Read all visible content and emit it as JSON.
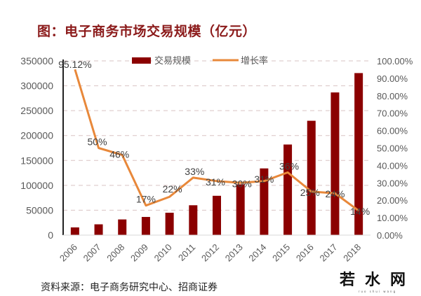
{
  "title": "图：电子商务市场交易规模（亿元）",
  "source": "资料来源：电子商务研究中心、招商证券",
  "watermark": {
    "text": "若水网",
    "subtext": "ruo shui wang"
  },
  "colors": {
    "bar": "#8b0000",
    "line": "#e8883a",
    "title": "#8b1a1a",
    "grid": "#d9c3c3",
    "axis_text": "#595959",
    "label_text": "#404040"
  },
  "chart_data": {
    "type": "bar+line",
    "title": "图：电子商务市场交易规模（亿元）",
    "categories": [
      "2006",
      "2007",
      "2008",
      "2009",
      "2010",
      "2011",
      "2012",
      "2013",
      "2014",
      "2015",
      "2016",
      "2017",
      "2018"
    ],
    "series": [
      {
        "name": "交易规模",
        "type": "bar",
        "axis": "left",
        "values": [
          15500,
          21700,
          31500,
          36500,
          45000,
          60000,
          79000,
          102000,
          134000,
          182000,
          229700,
          286600,
          325500
        ]
      },
      {
        "name": "增长率",
        "type": "line",
        "axis": "right",
        "values": [
          0.9512,
          0.5,
          0.46,
          0.17,
          0.22,
          0.33,
          0.31,
          0.3,
          0.31,
          0.36,
          0.25,
          0.24,
          0.14
        ],
        "labels": [
          "95.12%",
          "50%",
          "46%",
          "17%",
          "22%",
          "33%",
          "31%",
          "30%",
          "31%",
          "36%",
          "25%",
          "24%",
          "14%"
        ]
      }
    ],
    "left_axis": {
      "ylim": [
        0,
        350000
      ],
      "ticks": [
        "0",
        "50000",
        "100000",
        "150000",
        "200000",
        "250000",
        "300000",
        "350000"
      ]
    },
    "right_axis": {
      "ylim": [
        0,
        1.0
      ],
      "ticks": [
        "0.00%",
        "10.00%",
        "20.00%",
        "30.00%",
        "40.00%",
        "50.00%",
        "60.00%",
        "70.00%",
        "80.00%",
        "90.00%",
        "100.00%"
      ]
    },
    "xlabel": "",
    "ylabel": "",
    "grid": true,
    "legend": {
      "position": "top",
      "entries": [
        "交易规模",
        "增长率"
      ]
    }
  }
}
